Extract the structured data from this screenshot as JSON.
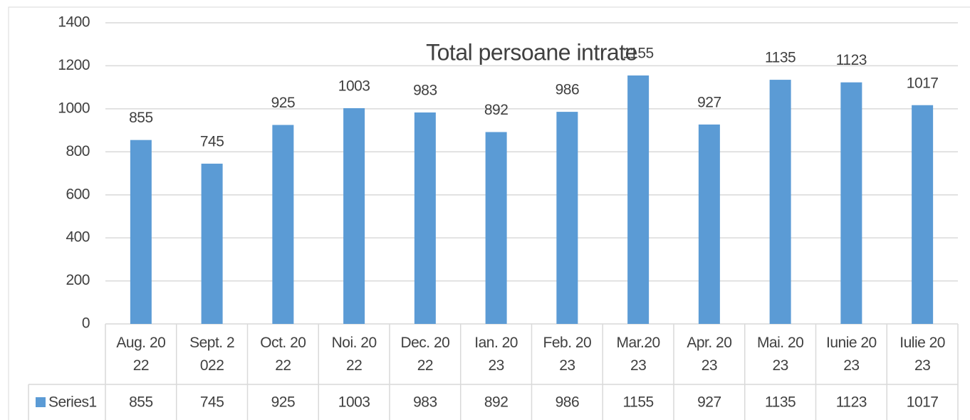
{
  "chart_data": {
    "type": "bar",
    "title": "Total persoane intrate",
    "categories": [
      "Aug. 2022",
      "Sept. 2022",
      "Oct. 2022",
      "Noi. 2022",
      "Dec. 2022",
      "Ian. 2023",
      "Feb. 2023",
      "Mar.2023",
      "Apr. 2023",
      "Mai. 2023",
      "Iunie 2023",
      "Iulie 2023"
    ],
    "series": [
      {
        "name": "Series1",
        "color": "#5b9bd5",
        "values": [
          855,
          745,
          925,
          1003,
          983,
          892,
          986,
          1155,
          927,
          1135,
          1123,
          1017
        ]
      }
    ],
    "ylim": [
      0,
      1400
    ],
    "yticks": [
      0,
      200,
      400,
      600,
      800,
      1000,
      1200,
      1400
    ],
    "grid": true,
    "data_table": true
  }
}
